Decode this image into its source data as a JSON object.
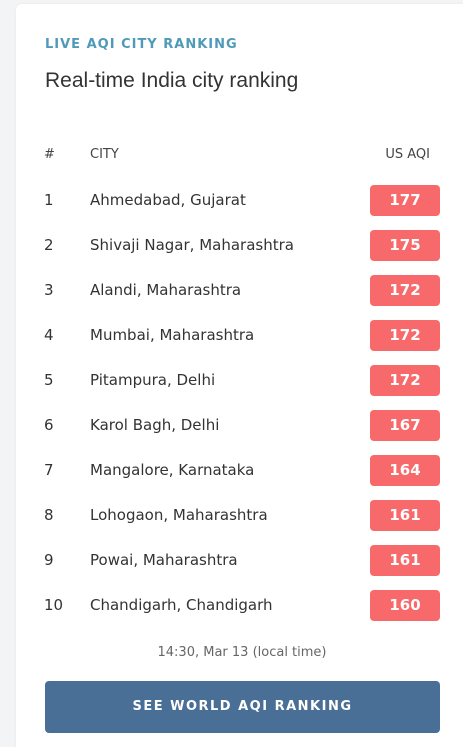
{
  "colors": {
    "eyebrow": "#4f9ab8",
    "aqi_badge": "#f7696a",
    "cta_button": "#4a6f96"
  },
  "widget": {
    "eyebrow": "LIVE AQI CITY RANKING",
    "title": "Real-time India city ranking"
  },
  "table": {
    "headers": {
      "rank": "#",
      "city": "CITY",
      "aqi": "US AQI"
    },
    "rows": [
      {
        "rank": "1",
        "city": "Ahmedabad, Gujarat",
        "aqi": "177"
      },
      {
        "rank": "2",
        "city": "Shivaji Nagar, Maharashtra",
        "aqi": "175"
      },
      {
        "rank": "3",
        "city": "Alandi, Maharashtra",
        "aqi": "172"
      },
      {
        "rank": "4",
        "city": "Mumbai, Maharashtra",
        "aqi": "172"
      },
      {
        "rank": "5",
        "city": "Pitampura, Delhi",
        "aqi": "172"
      },
      {
        "rank": "6",
        "city": "Karol Bagh, Delhi",
        "aqi": "167"
      },
      {
        "rank": "7",
        "city": "Mangalore, Karnataka",
        "aqi": "164"
      },
      {
        "rank": "8",
        "city": "Lohogaon, Maharashtra",
        "aqi": "161"
      },
      {
        "rank": "9",
        "city": "Powai, Maharashtra",
        "aqi": "161"
      },
      {
        "rank": "10",
        "city": "Chandigarh, Chandigarh",
        "aqi": "160"
      }
    ]
  },
  "footer": {
    "updated": "14:30, Mar 13 (local time)",
    "cta_label": "SEE WORLD AQI RANKING"
  }
}
